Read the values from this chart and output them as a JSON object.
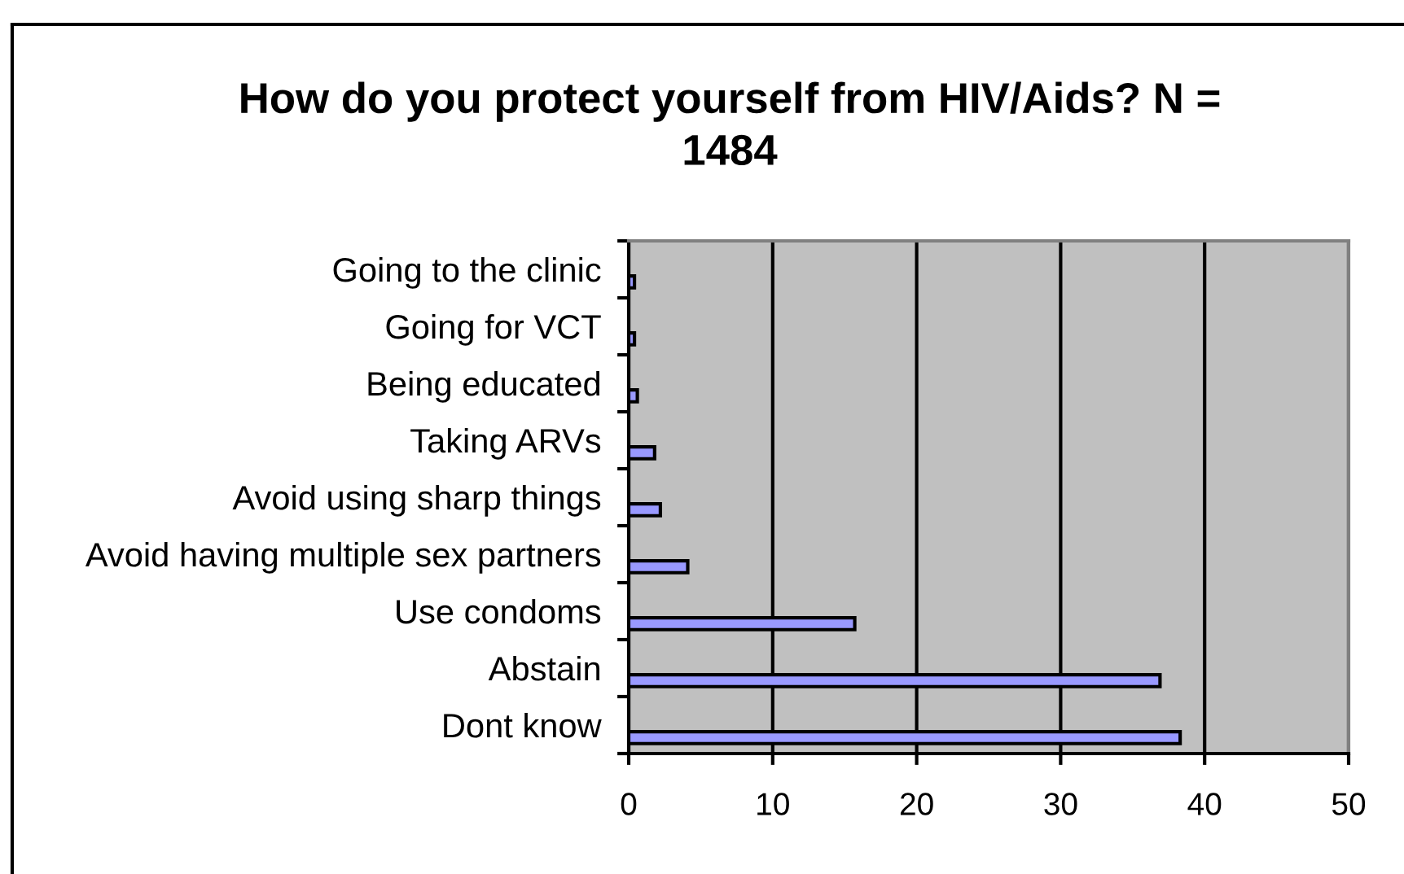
{
  "chart_data": {
    "type": "bar",
    "orientation": "horizontal",
    "title": "How do you protect yourself from HIV/Aids? N =\n1484",
    "categories": [
      "Going to the clinic",
      "Going for VCT",
      "Being educated",
      "Taking ARVs",
      "Avoid using sharp things",
      "Avoid having multiple sex partners",
      "Use condoms",
      "Abstain",
      "Dont know"
    ],
    "values": [
      0.4,
      0.4,
      0.6,
      1.8,
      2.2,
      4.1,
      15.7,
      36.9,
      38.3
    ],
    "color": "#9999ff",
    "xlim": [
      0,
      50
    ],
    "xticks": [
      0,
      10,
      20,
      30,
      40,
      50
    ],
    "grid": "x",
    "legend": false
  }
}
